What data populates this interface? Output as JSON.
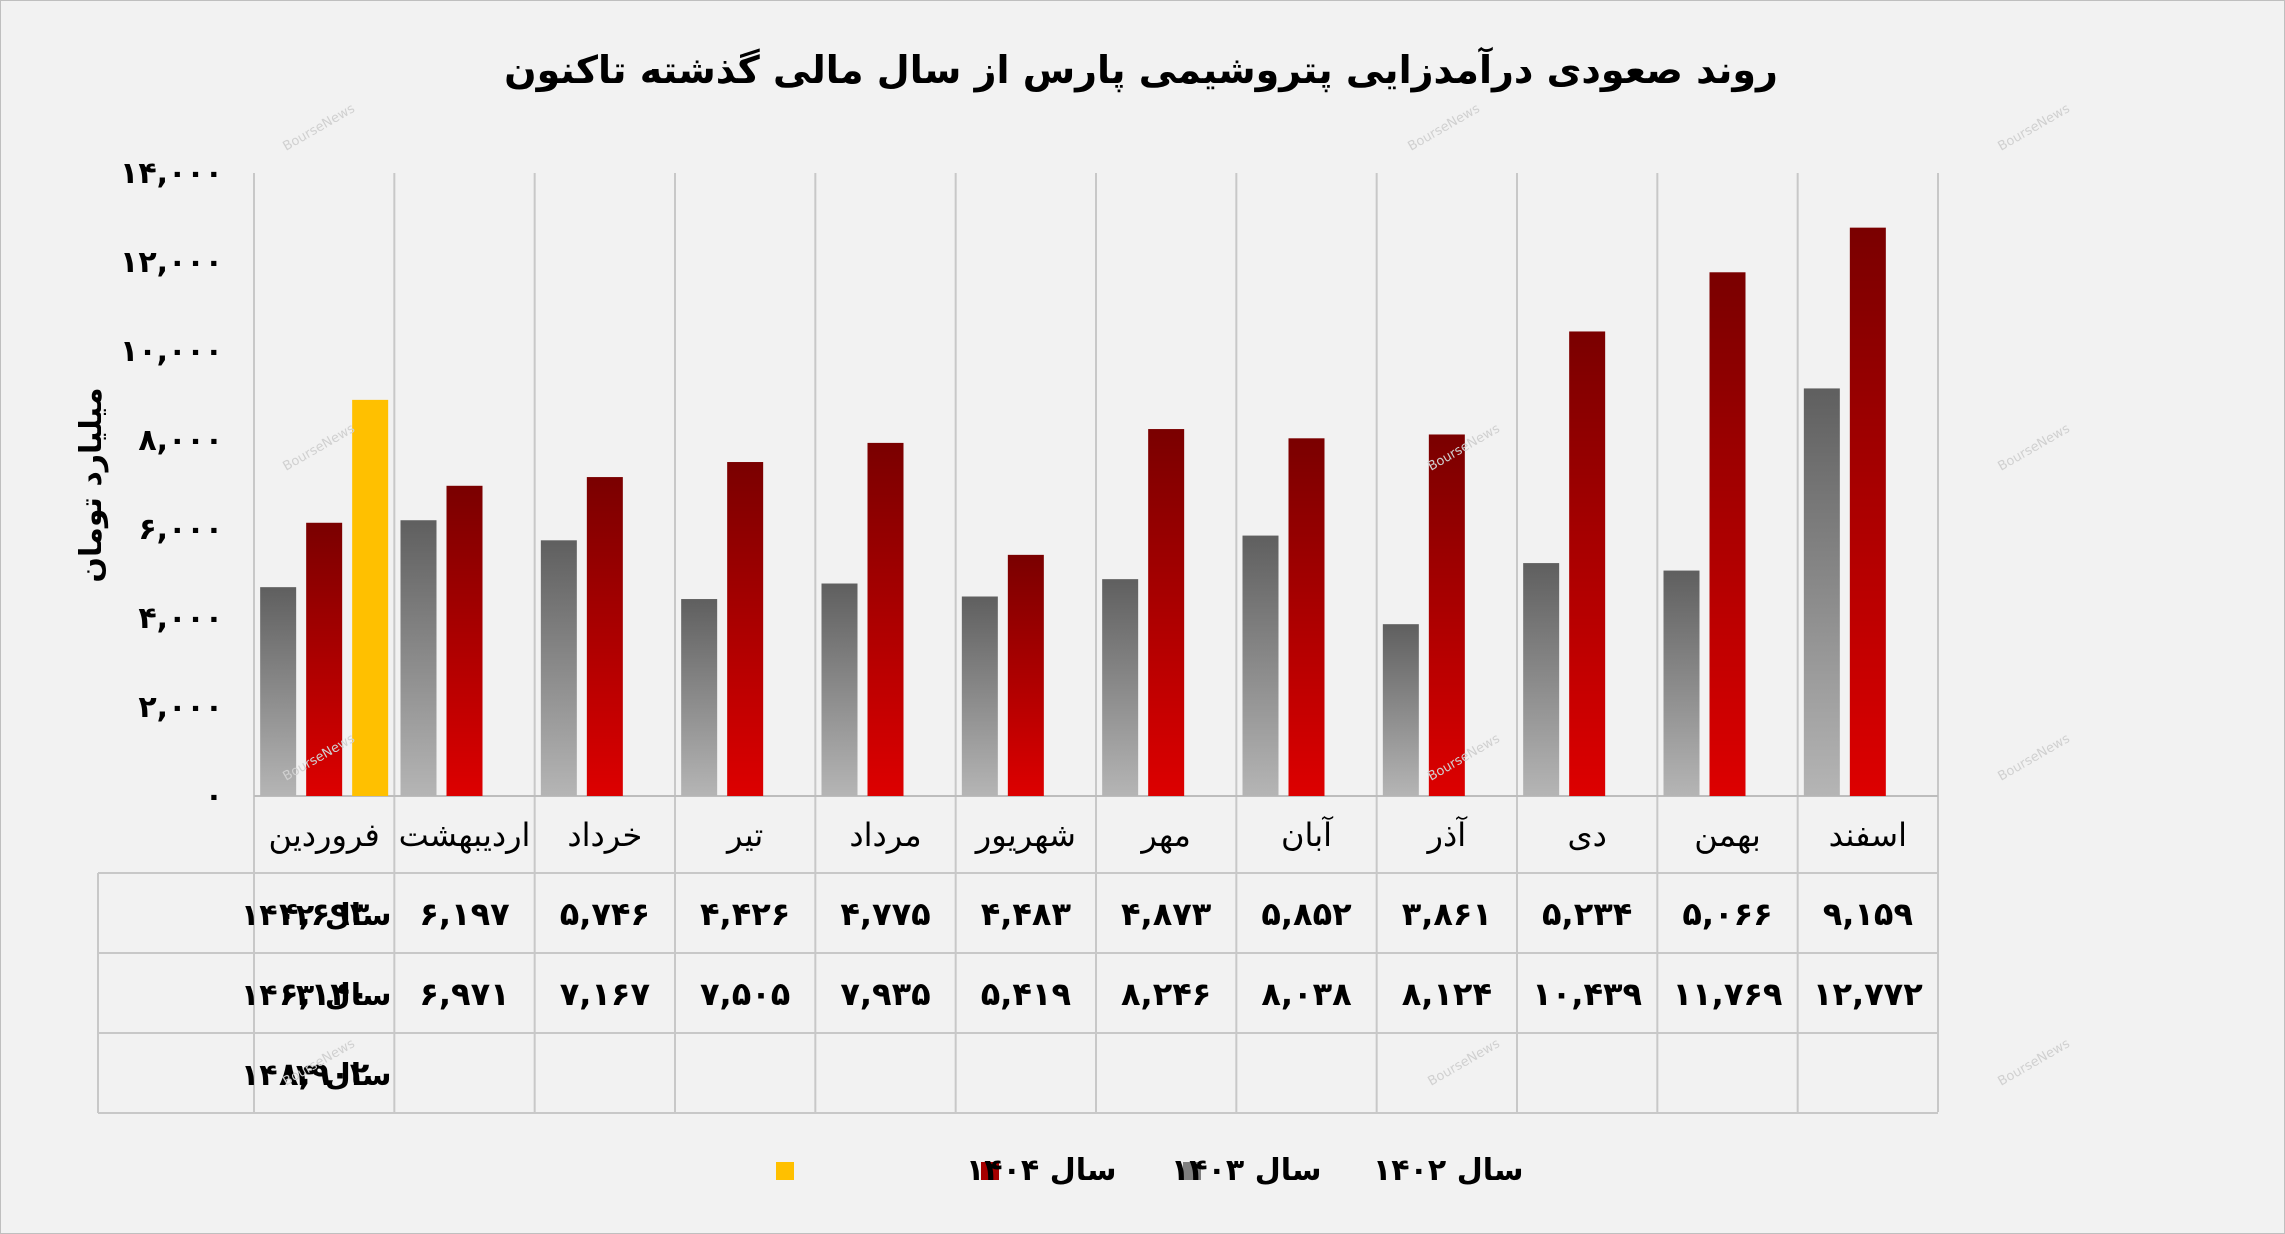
{
  "chart_data": {
    "type": "bar",
    "title": "روند صعودی درآمدزایی پتروشیمی پارس از سال مالی گذشته تاکنون",
    "ylabel": "میلیارد تومان",
    "ylim": [
      0,
      14000
    ],
    "yticks": [
      0,
      2000,
      4000,
      6000,
      8000,
      10000,
      12000,
      14000
    ],
    "ytick_labels": [
      "۰",
      "۲,۰۰۰",
      "۴,۰۰۰",
      "۶,۰۰۰",
      "۸,۰۰۰",
      "۱۰,۰۰۰",
      "۱۲,۰۰۰",
      "۱۴,۰۰۰"
    ],
    "grid": "vertical",
    "legend_position": "bottom",
    "has_data_table": true,
    "watermark": "BourseNews",
    "categories": [
      "فروردین",
      "اردیبهشت",
      "خرداد",
      "تیر",
      "مرداد",
      "شهریور",
      "مهر",
      "آبان",
      "آذر",
      "دی",
      "بهمن",
      "اسفند"
    ],
    "series": [
      {
        "name": "سال ۱۴۰۲",
        "color": "#7f7f7f",
        "values": [
          4693,
          6197,
          5746,
          4426,
          4775,
          4483,
          4873,
          5852,
          3861,
          5234,
          5066,
          9159
        ],
        "labels": [
          "۴,۶۹۳",
          "۶,۱۹۷",
          "۵,۷۴۶",
          "۴,۴۲۶",
          "۴,۷۷۵",
          "۴,۴۸۳",
          "۴,۸۷۳",
          "۵,۸۵۲",
          "۳,۸۶۱",
          "۵,۲۳۴",
          "۵,۰۶۶",
          "۹,۱۵۹"
        ]
      },
      {
        "name": "سال ۱۴۰۳",
        "color": "#a50000",
        "values": [
          6140,
          6971,
          7167,
          7505,
          7935,
          5419,
          8246,
          8038,
          8124,
          10439,
          11769,
          12772
        ],
        "labels": [
          "۶,۱۴۰",
          "۶,۹۷۱",
          "۷,۱۶۷",
          "۷,۵۰۵",
          "۷,۹۳۵",
          "۵,۴۱۹",
          "۸,۲۴۶",
          "۸,۰۳۸",
          "۸,۱۲۴",
          "۱۰,۴۳۹",
          "۱۱,۷۶۹",
          "۱۲,۷۷۲"
        ]
      },
      {
        "name": "سال ۱۴۰۴",
        "color": "#ffc000",
        "values": [
          8902,
          null,
          null,
          null,
          null,
          null,
          null,
          null,
          null,
          null,
          null,
          null
        ],
        "labels": [
          "۸,۹۰۲",
          "",
          "",
          "",
          "",
          "",
          "",
          "",
          "",
          "",
          "",
          ""
        ]
      }
    ]
  }
}
